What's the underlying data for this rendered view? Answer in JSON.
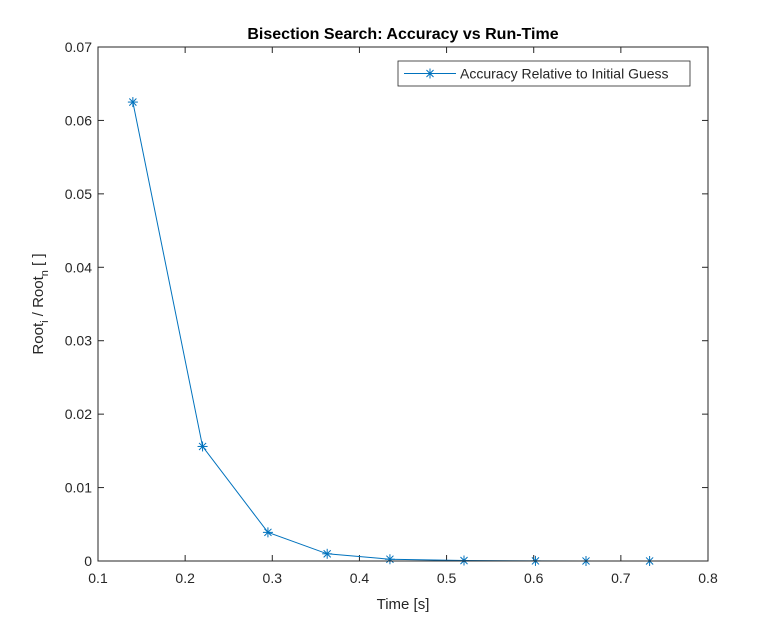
{
  "chart_data": {
    "type": "line",
    "title": "Bisection Search: Accuracy vs Run-Time",
    "xlabel": "Time [s]",
    "ylabel": {
      "root1": "Root",
      "sub1": "i",
      "sep": " / ",
      "root2": "Root",
      "sub2": "n",
      "unit": " [ ]"
    },
    "xlim": [
      0.1,
      0.8
    ],
    "ylim": [
      0,
      0.07
    ],
    "x_ticks": [
      "0.1",
      "0.2",
      "0.3",
      "0.4",
      "0.5",
      "0.6",
      "0.7",
      "0.8"
    ],
    "y_ticks": [
      "0",
      "0.01",
      "0.02",
      "0.03",
      "0.04",
      "0.05",
      "0.06",
      "0.07"
    ],
    "grid": false,
    "legend_position": "top-right",
    "series": [
      {
        "name": "Accuracy Relative to Initial Guess",
        "color": "#0072BD",
        "marker": "asterisk",
        "x": [
          0.14,
          0.22,
          0.295,
          0.363,
          0.435,
          0.52,
          0.602,
          0.66,
          0.733
        ],
        "y": [
          0.0625,
          0.0156,
          0.0039,
          0.00098,
          0.00024,
          6e-05,
          1.5e-05,
          4e-06,
          1e-06
        ]
      }
    ]
  }
}
